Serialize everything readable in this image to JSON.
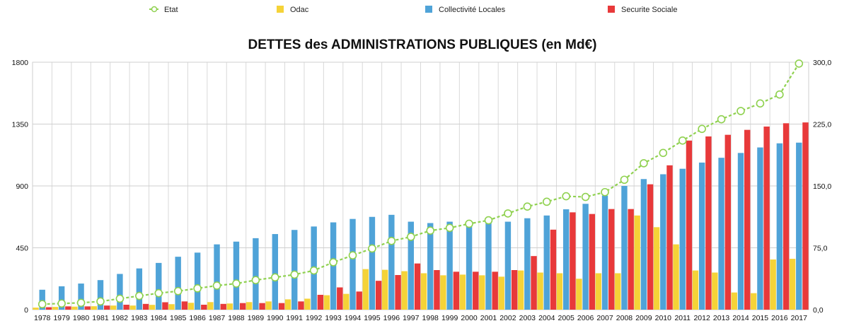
{
  "chart_data": {
    "type": "bar",
    "title": "DETTES des ADMINISTRATIONS PUBLIQUES (en Md€)",
    "xlabel": "",
    "ylabel": "",
    "ylim": [
      0,
      1800
    ],
    "y2lim": [
      0,
      300
    ],
    "y_ticks": [
      "0",
      "450",
      "900",
      "1350",
      "1800"
    ],
    "y2_ticks": [
      "0,0",
      "75,0",
      "150,0",
      "225,0",
      "300,0"
    ],
    "categories": [
      "1978",
      "1979",
      "1980",
      "1981",
      "1982",
      "1983",
      "1984",
      "1985",
      "1986",
      "1987",
      "1988",
      "1989",
      "1990",
      "1991",
      "1992",
      "1993",
      "1994",
      "1995",
      "1996",
      "1997",
      "1998",
      "1999",
      "2000",
      "2001",
      "2002",
      "2003",
      "2004",
      "2005",
      "2006",
      "2007",
      "2008",
      "2009",
      "2010",
      "2011",
      "2012",
      "2013",
      "2014",
      "2015",
      "2016",
      "2017"
    ],
    "legend": [
      {
        "name": "Etat",
        "color": "#8fd14f",
        "kind": "line"
      },
      {
        "name": "Odac",
        "color": "#f5d338",
        "kind": "bar"
      },
      {
        "name": "Collectivité Locales",
        "color": "#4fa3d8",
        "kind": "bar"
      },
      {
        "name": "Securite Sociale",
        "color": "#e8393a",
        "kind": "bar"
      }
    ],
    "series": [
      {
        "name": "Etat",
        "type": "line",
        "axis": "left",
        "color": "#8fd14f",
        "values": [
          40,
          45,
          50,
          60,
          80,
          100,
          120,
          135,
          155,
          175,
          190,
          215,
          235,
          255,
          285,
          345,
          395,
          445,
          500,
          530,
          575,
          595,
          625,
          650,
          700,
          750,
          785,
          825,
          820,
          855,
          945,
          1065,
          1140,
          1230,
          1315,
          1385,
          1445,
          1500,
          1565,
          1790
        ]
      },
      {
        "name": "Odac",
        "type": "bar",
        "axis": "left",
        "color": "#f5d338",
        "values": [
          15,
          20,
          22,
          25,
          30,
          30,
          35,
          40,
          50,
          55,
          45,
          55,
          60,
          75,
          80,
          105,
          115,
          295,
          290,
          280,
          265,
          250,
          255,
          250,
          240,
          285,
          270,
          265,
          225,
          265,
          265,
          685,
          600,
          475,
          285,
          270,
          125,
          120,
          365,
          370
        ]
      },
      {
        "name": "Collectivité Locales",
        "type": "bar",
        "axis": "left",
        "color": "#4fa3d8",
        "values": [
          145,
          170,
          190,
          215,
          260,
          300,
          340,
          385,
          415,
          475,
          495,
          520,
          550,
          580,
          605,
          635,
          660,
          675,
          690,
          640,
          630,
          640,
          640,
          645,
          640,
          665,
          685,
          730,
          770,
          830,
          900,
          950,
          985,
          1025,
          1070,
          1105,
          1140,
          1180,
          1210,
          1215
        ]
      },
      {
        "name": "Securite Sociale",
        "type": "bar",
        "axis": "right",
        "color": "#e8393a",
        "values": [
          3,
          4,
          4,
          5,
          6,
          7,
          9,
          10,
          6,
          7,
          8,
          8,
          8,
          10,
          18,
          27,
          22,
          35,
          42,
          56,
          48,
          46,
          46,
          46,
          48,
          65,
          97,
          118,
          116,
          122,
          122,
          152,
          175,
          205,
          210,
          212,
          218,
          222,
          226,
          227
        ]
      }
    ]
  }
}
